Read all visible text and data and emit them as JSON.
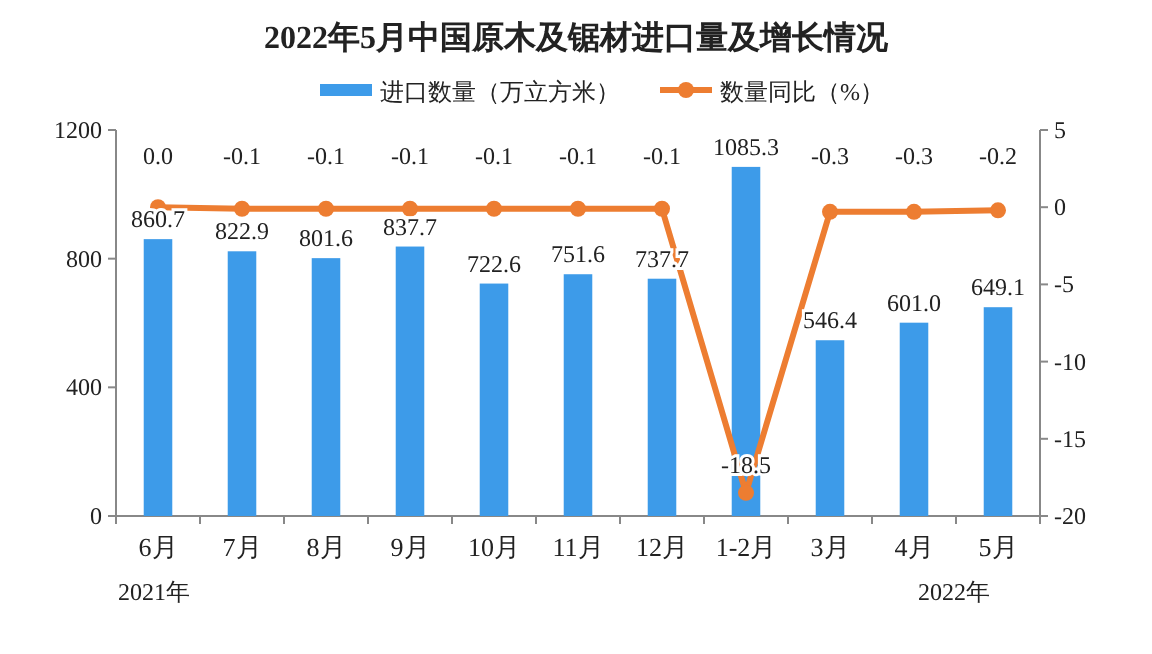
{
  "chart_data": {
    "type": "bar",
    "title": "2022年5月中国原木及锯材进口量及增长情况",
    "categories": [
      "6月",
      "7月",
      "8月",
      "9月",
      "10月",
      "11月",
      "12月",
      "1-2月",
      "3月",
      "4月",
      "5月"
    ],
    "series": [
      {
        "name": "进口数量（万立方米）",
        "color": "#3d9be9",
        "values": [
          860.7,
          822.9,
          801.6,
          837.7,
          722.6,
          751.6,
          737.7,
          1085.3,
          546.4,
          601.0,
          649.1
        ],
        "value_labels": [
          "860.7",
          "822.9",
          "801.6",
          "837.7",
          "722.6",
          "751.6",
          "737.7",
          "1085.3",
          "546.4",
          "601.0",
          "649.1"
        ]
      },
      {
        "name": "数量同比（%）",
        "type": "line",
        "axis": "y2",
        "color": "#ed7d31",
        "values": [
          0.0,
          -0.1,
          -0.1,
          -0.1,
          -0.1,
          -0.1,
          -0.1,
          -18.5,
          -0.3,
          -0.3,
          -0.2
        ],
        "value_labels": [
          "0.0",
          "-0.1",
          "-0.1",
          "-0.1",
          "-0.1",
          "-0.1",
          "-0.1",
          "-18.5",
          "-0.3",
          "-0.3",
          "-0.2"
        ]
      }
    ],
    "ylim": [
      0,
      1200
    ],
    "yticks": [
      0,
      400,
      800,
      1200
    ],
    "y2lim": [
      -20,
      5
    ],
    "y2ticks": [
      -20,
      -15,
      -10,
      -5,
      0,
      5
    ],
    "marker": "circle",
    "line_style": "solid",
    "legend": "top",
    "grid": false,
    "annotations": [
      "2021年",
      "2022年"
    ]
  }
}
